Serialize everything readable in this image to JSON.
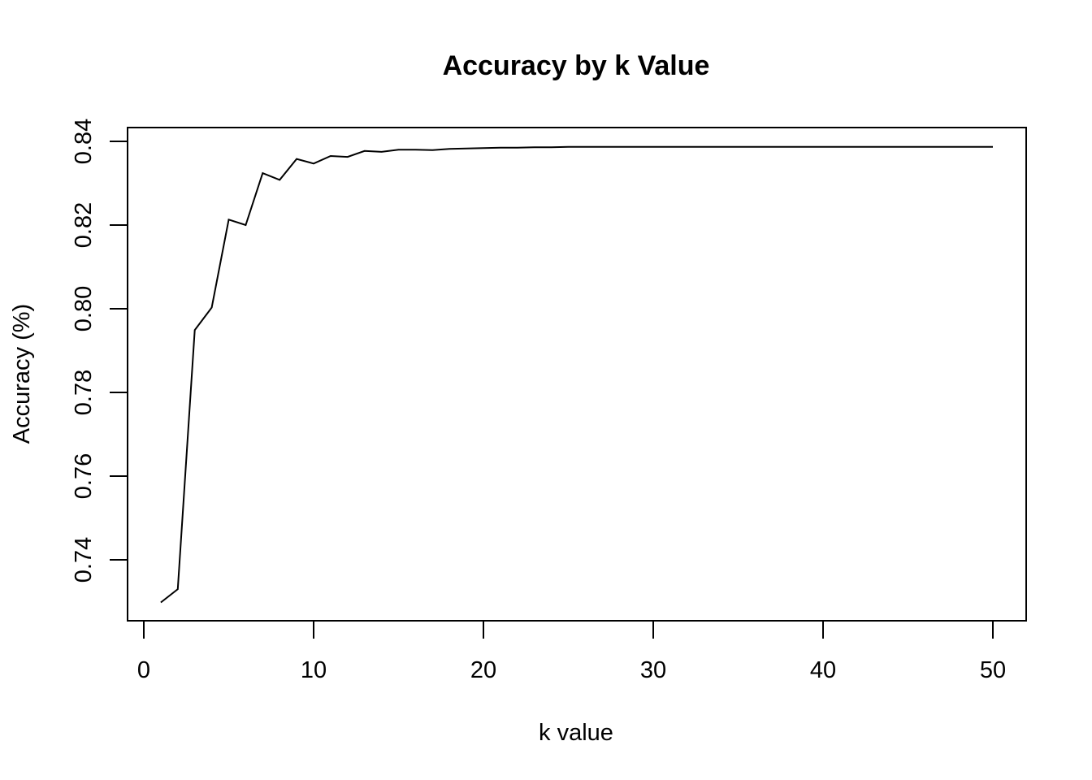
{
  "chart_data": {
    "type": "line",
    "title": "Accuracy by k Value",
    "xlabel": "k value",
    "ylabel": "Accuracy (%)",
    "xlim": [
      0,
      50
    ],
    "ylim": [
      0.73,
      0.84
    ],
    "x_ticks": [
      0,
      10,
      20,
      30,
      40,
      50
    ],
    "x_tick_labels": [
      "0",
      "10",
      "20",
      "30",
      "40",
      "50"
    ],
    "y_ticks": [
      0.74,
      0.76,
      0.78,
      0.8,
      0.82,
      0.84
    ],
    "y_tick_labels": [
      "0.74",
      "0.76",
      "0.78",
      "0.80",
      "0.82",
      "0.84"
    ],
    "grid": false,
    "line_color": "#000000",
    "series": [
      {
        "x": [
          1,
          2,
          3,
          4,
          5,
          6,
          7,
          8,
          9,
          10,
          11,
          12,
          13,
          14,
          15,
          16,
          17,
          18,
          19,
          20,
          21,
          22,
          23,
          24,
          25,
          26,
          27,
          28,
          29,
          30,
          31,
          32,
          33,
          34,
          35,
          36,
          37,
          38,
          39,
          40,
          41,
          42,
          43,
          44,
          45,
          46,
          47,
          48,
          49,
          50
        ],
        "values": [
          0.7298,
          0.733,
          0.7949,
          0.8003,
          0.8213,
          0.82,
          0.8324,
          0.8308,
          0.8358,
          0.8347,
          0.8365,
          0.8363,
          0.8377,
          0.8375,
          0.838,
          0.838,
          0.8379,
          0.8382,
          0.8383,
          0.8384,
          0.8385,
          0.8385,
          0.8386,
          0.8386,
          0.8387,
          0.8387,
          0.8387,
          0.8387,
          0.8387,
          0.8387,
          0.8387,
          0.8387,
          0.8387,
          0.8387,
          0.8387,
          0.8387,
          0.8387,
          0.8387,
          0.8387,
          0.8387,
          0.8387,
          0.8387,
          0.8387,
          0.8387,
          0.8387,
          0.8387,
          0.8387,
          0.8387,
          0.8387,
          0.8387
        ]
      }
    ]
  }
}
